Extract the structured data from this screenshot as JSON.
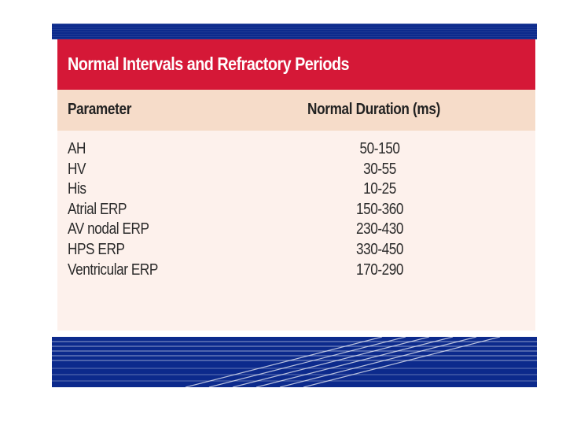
{
  "table": {
    "title": "Normal Intervals and Refractory Periods",
    "headers": {
      "parameter": "Parameter",
      "duration": "Normal Duration (ms)"
    },
    "rows": [
      {
        "parameter": "AH",
        "duration": "50-150"
      },
      {
        "parameter": "HV",
        "duration": "30-55"
      },
      {
        "parameter": "His",
        "duration": "10-25"
      },
      {
        "parameter": "Atrial ERP",
        "duration": "150-360"
      },
      {
        "parameter": "AV nodal ERP",
        "duration": "230-430"
      },
      {
        "parameter": "HPS ERP",
        "duration": "330-450"
      },
      {
        "parameter": "Ventricular ERP",
        "duration": "170-290"
      }
    ]
  },
  "colors": {
    "title_band": "#d51837",
    "header_band": "#f6dcc9",
    "body_band": "#fdf1ec",
    "frame_blue": "#0c2a8c"
  }
}
